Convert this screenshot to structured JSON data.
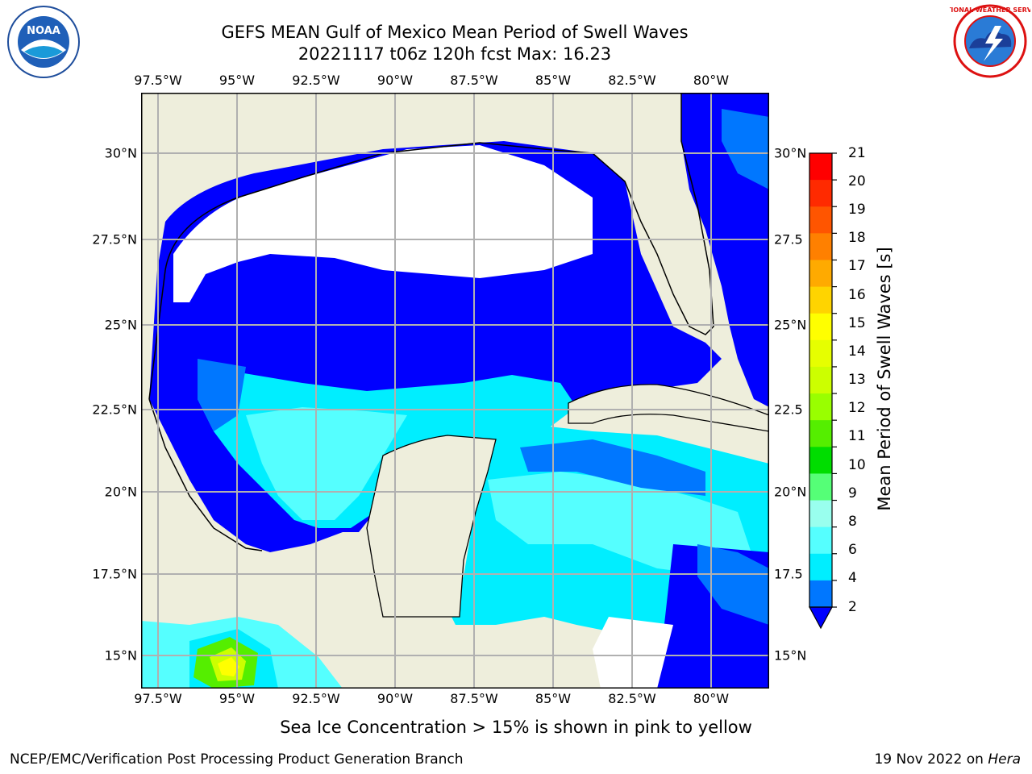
{
  "title_line1": "GEFS MEAN Gulf of Mexico Mean Period of Swell Waves",
  "title_line2": "20221117 t06z 120h fcst   Max: 16.23",
  "lon_labels": [
    "97.5°W",
    "95°W",
    "92.5°W",
    "90°W",
    "87.5°W",
    "85°W",
    "82.5°W",
    "80°W"
  ],
  "lat_labels_left": [
    "30°N",
    "27.5°N",
    "25°N",
    "22.5°N",
    "20°N",
    "17.5°N",
    "15°N"
  ],
  "lat_labels_right": [
    "30°N",
    "27.5",
    "25°N",
    "22.5",
    "20°N",
    "17.5",
    "15°N"
  ],
  "colorbar": {
    "label": "Mean Period of Swell Waves [s]",
    "ticks": [
      "21",
      "20",
      "19",
      "18",
      "17",
      "16",
      "15",
      "14",
      "13",
      "12",
      "11",
      "10",
      "9",
      "8",
      "6",
      "4",
      "2"
    ],
    "colors": [
      "#ff0000",
      "#ff2a00",
      "#ff5500",
      "#ff8000",
      "#ffaa00",
      "#ffd400",
      "#ffff00",
      "#e6ff00",
      "#ccff00",
      "#99ff00",
      "#55ee00",
      "#00dd00",
      "#55ff77",
      "#99ffee",
      "#55ffff",
      "#00eeff",
      "#0077ff",
      "#0000ff"
    ]
  },
  "map_colors": {
    "land": "#eeeedc",
    "deep_blue": "#0000ff",
    "mid_blue": "#0077ff",
    "cyan": "#00eeff",
    "light_cyan": "#55ffff",
    "pale_cyan": "#99ffee",
    "green": "#55ee00",
    "yellow_green": "#ccff00",
    "yellow": "#ffff00",
    "no_data": "#ffffff",
    "grid": "#b0b0b0"
  },
  "ice_note": "Sea Ice Concentration > 15% is shown in pink to yellow",
  "footer_left": "NCEP/EMC/Verification Post Processing Product Generation Branch",
  "footer_date": "19 Nov 2022 on ",
  "footer_machine": "Hera",
  "logos": {
    "noaa": "NOAA",
    "nws": "NATIONAL WEATHER SERVICE"
  }
}
